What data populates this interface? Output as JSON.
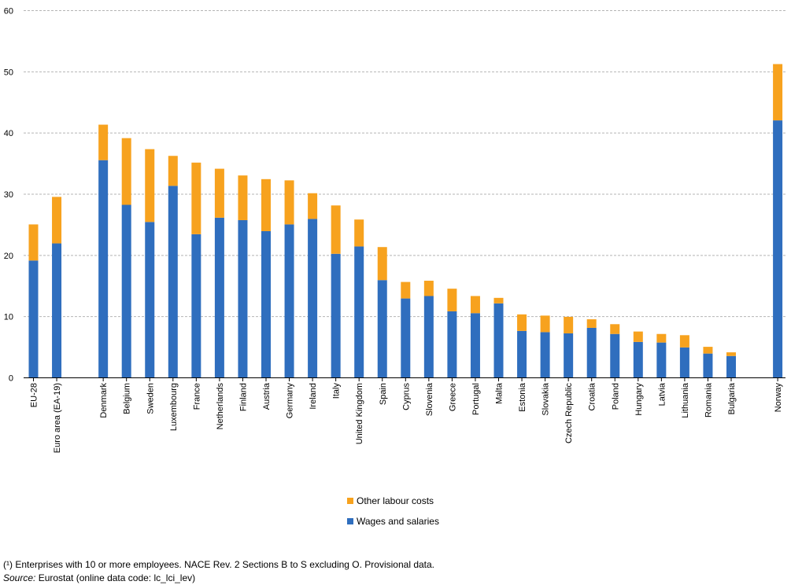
{
  "chart_data": {
    "type": "bar",
    "stacked": true,
    "categories": [
      "EU-28",
      "Euro area (EA-19)",
      "Denmark",
      "Belgium",
      "Sweden",
      "Luxembourg",
      "France",
      "Netherlands",
      "Finland",
      "Austria",
      "Germany",
      "Ireland",
      "Italy",
      "United Kingdom",
      "Spain",
      "Cyprus",
      "Slovenia",
      "Greece",
      "Portugal",
      "Malta",
      "Estonia",
      "Slovakia",
      "Czech Republic",
      "Croatia",
      "Poland",
      "Hungary",
      "Latvia",
      "Lithuania",
      "Romania",
      "Bulgaria",
      "Norway"
    ],
    "series": [
      {
        "name": "Wages and salaries",
        "color": "#2f6ebe",
        "values": [
          19.1,
          21.9,
          35.5,
          28.2,
          25.4,
          31.3,
          23.4,
          26.1,
          25.7,
          23.9,
          25.0,
          25.9,
          20.2,
          21.4,
          15.9,
          12.9,
          13.3,
          10.8,
          10.5,
          12.1,
          7.6,
          7.4,
          7.2,
          8.1,
          7.1,
          5.8,
          5.7,
          4.9,
          3.9,
          3.5,
          42.0
        ]
      },
      {
        "name": "Other labour costs",
        "color": "#f7a21e",
        "values": [
          5.9,
          7.6,
          5.8,
          10.9,
          11.9,
          4.9,
          11.7,
          8.0,
          7.3,
          8.5,
          7.2,
          4.2,
          7.9,
          4.4,
          5.4,
          2.7,
          2.5,
          3.7,
          2.8,
          0.9,
          2.7,
          2.7,
          2.7,
          1.4,
          1.6,
          1.7,
          1.4,
          2.0,
          1.1,
          0.6,
          9.2
        ]
      }
    ],
    "yticks": [
      0,
      10,
      20,
      30,
      40,
      50,
      60
    ],
    "ylim": [
      0,
      60
    ],
    "grid": true,
    "legend_position": "bottom"
  },
  "footnote": "(¹) Enterprises with 10 or more employees. NACE Rev. 2 Sections B to S excluding O. Provisional data.",
  "source": {
    "label": "Source:",
    "text": " Eurostat (online data code: lc_lci_lev)"
  }
}
